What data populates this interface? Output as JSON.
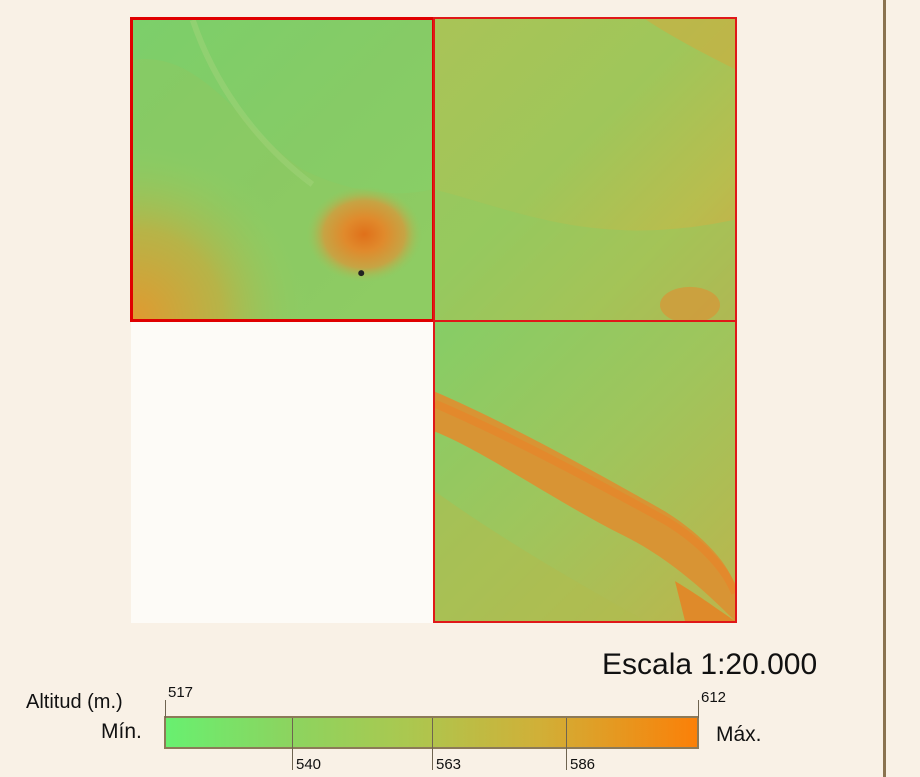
{
  "map": {
    "scale_label": "Escala 1:20.000",
    "tiles": [
      {
        "id": "nw",
        "selected": true
      },
      {
        "id": "ne",
        "selected": false
      },
      {
        "id": "se",
        "selected": false
      }
    ]
  },
  "legend": {
    "title": "Altitud (m.)",
    "min_label": "Mín.",
    "max_label": "Máx.",
    "min_value": "517",
    "max_value": "612",
    "breaks": [
      "540",
      "563",
      "586"
    ],
    "colors": {
      "low": "#68f070",
      "mid": "#aac850",
      "high": "#fb8008",
      "tile_border": "#e00000"
    }
  }
}
